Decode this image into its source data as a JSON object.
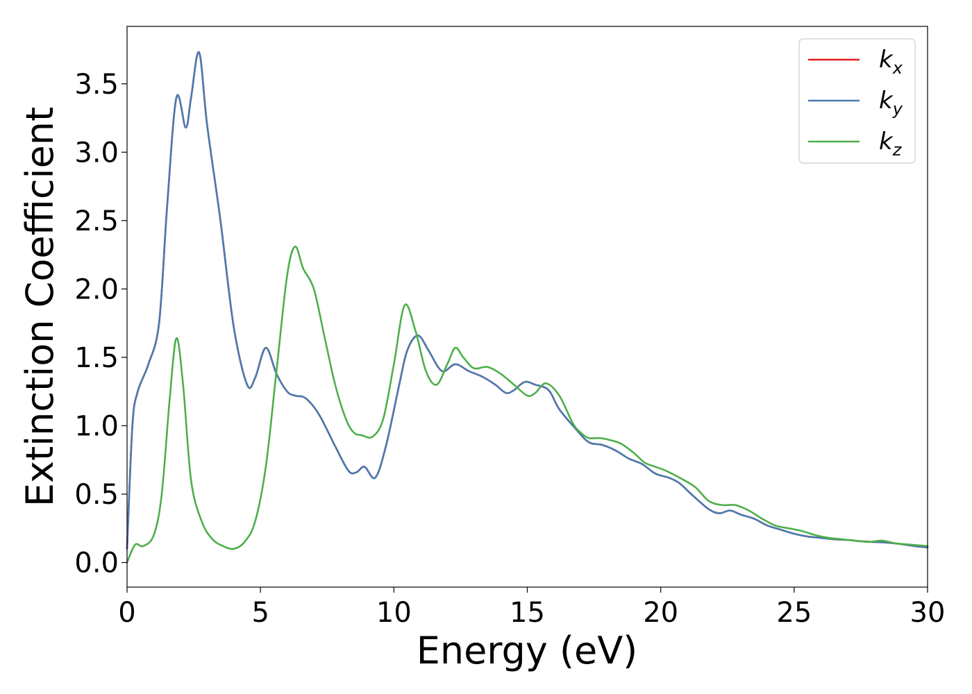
{
  "chart_data": {
    "type": "line",
    "xlabel": "Energy (eV)",
    "ylabel": "Extinction Coefficient",
    "xlim": [
      0,
      30
    ],
    "ylim": [
      -0.18,
      3.92
    ],
    "xticks": [
      0,
      5,
      10,
      15,
      20,
      25,
      30
    ],
    "xtick_labels": [
      "0",
      "5",
      "10",
      "15",
      "20",
      "25",
      "30"
    ],
    "yticks": [
      0.0,
      0.5,
      1.0,
      1.5,
      2.0,
      2.5,
      3.0,
      3.5
    ],
    "ytick_labels": [
      "0.0",
      "0.5",
      "1.0",
      "1.5",
      "2.0",
      "2.5",
      "3.0",
      "3.5"
    ],
    "grid": false,
    "legend": {
      "position": "top-right"
    },
    "series": [
      {
        "name": "k_x",
        "label_base": "k",
        "label_sub": "x",
        "color": "#e41a1c",
        "points": [
          [
            0,
            0.1
          ],
          [
            0.2,
            1.0
          ],
          [
            0.4,
            1.25
          ],
          [
            0.8,
            1.45
          ],
          [
            1.2,
            1.75
          ],
          [
            1.5,
            2.6
          ],
          [
            1.85,
            3.4
          ],
          [
            2.2,
            3.18
          ],
          [
            2.4,
            3.4
          ],
          [
            2.7,
            3.73
          ],
          [
            3.0,
            3.2
          ],
          [
            3.5,
            2.5
          ],
          [
            4.0,
            1.72
          ],
          [
            4.5,
            1.3
          ],
          [
            4.8,
            1.35
          ],
          [
            5.2,
            1.57
          ],
          [
            5.6,
            1.38
          ],
          [
            6.0,
            1.25
          ],
          [
            6.3,
            1.22
          ],
          [
            6.7,
            1.2
          ],
          [
            7.2,
            1.08
          ],
          [
            7.8,
            0.85
          ],
          [
            8.3,
            0.67
          ],
          [
            8.6,
            0.66
          ],
          [
            8.9,
            0.7
          ],
          [
            9.3,
            0.62
          ],
          [
            9.7,
            0.85
          ],
          [
            10.2,
            1.3
          ],
          [
            10.5,
            1.55
          ],
          [
            10.9,
            1.66
          ],
          [
            11.3,
            1.55
          ],
          [
            11.8,
            1.4
          ],
          [
            12.3,
            1.45
          ],
          [
            12.8,
            1.4
          ],
          [
            13.3,
            1.36
          ],
          [
            13.8,
            1.3
          ],
          [
            14.2,
            1.24
          ],
          [
            14.5,
            1.26
          ],
          [
            14.9,
            1.32
          ],
          [
            15.3,
            1.3
          ],
          [
            15.8,
            1.26
          ],
          [
            16.2,
            1.12
          ],
          [
            16.8,
            0.98
          ],
          [
            17.3,
            0.88
          ],
          [
            17.8,
            0.86
          ],
          [
            18.3,
            0.82
          ],
          [
            18.8,
            0.76
          ],
          [
            19.3,
            0.72
          ],
          [
            19.8,
            0.65
          ],
          [
            20.3,
            0.62
          ],
          [
            20.7,
            0.58
          ],
          [
            21.2,
            0.49
          ],
          [
            21.8,
            0.39
          ],
          [
            22.2,
            0.36
          ],
          [
            22.6,
            0.38
          ],
          [
            23.0,
            0.35
          ],
          [
            23.5,
            0.32
          ],
          [
            24.0,
            0.27
          ],
          [
            24.5,
            0.24
          ],
          [
            25.0,
            0.21
          ],
          [
            25.5,
            0.19
          ],
          [
            26.0,
            0.18
          ],
          [
            26.5,
            0.17
          ],
          [
            27.0,
            0.165
          ],
          [
            27.5,
            0.155
          ],
          [
            28.0,
            0.15
          ],
          [
            28.5,
            0.145
          ],
          [
            29.0,
            0.135
          ],
          [
            29.5,
            0.12
          ],
          [
            30.0,
            0.11
          ]
        ]
      },
      {
        "name": "k_y",
        "label_base": "k",
        "label_sub": "y",
        "color": "#4a7bb0",
        "points": [
          [
            0,
            0.1
          ],
          [
            0.2,
            1.0
          ],
          [
            0.4,
            1.25
          ],
          [
            0.8,
            1.45
          ],
          [
            1.2,
            1.75
          ],
          [
            1.5,
            2.6
          ],
          [
            1.85,
            3.4
          ],
          [
            2.2,
            3.18
          ],
          [
            2.4,
            3.4
          ],
          [
            2.7,
            3.73
          ],
          [
            3.0,
            3.2
          ],
          [
            3.5,
            2.5
          ],
          [
            4.0,
            1.72
          ],
          [
            4.5,
            1.3
          ],
          [
            4.8,
            1.35
          ],
          [
            5.2,
            1.57
          ],
          [
            5.6,
            1.38
          ],
          [
            6.0,
            1.25
          ],
          [
            6.3,
            1.22
          ],
          [
            6.7,
            1.2
          ],
          [
            7.2,
            1.08
          ],
          [
            7.8,
            0.85
          ],
          [
            8.3,
            0.67
          ],
          [
            8.6,
            0.66
          ],
          [
            8.9,
            0.7
          ],
          [
            9.3,
            0.62
          ],
          [
            9.7,
            0.85
          ],
          [
            10.2,
            1.3
          ],
          [
            10.5,
            1.55
          ],
          [
            10.9,
            1.66
          ],
          [
            11.3,
            1.55
          ],
          [
            11.8,
            1.4
          ],
          [
            12.3,
            1.45
          ],
          [
            12.8,
            1.4
          ],
          [
            13.3,
            1.36
          ],
          [
            13.8,
            1.3
          ],
          [
            14.2,
            1.24
          ],
          [
            14.5,
            1.26
          ],
          [
            14.9,
            1.32
          ],
          [
            15.3,
            1.3
          ],
          [
            15.8,
            1.26
          ],
          [
            16.2,
            1.12
          ],
          [
            16.8,
            0.98
          ],
          [
            17.3,
            0.88
          ],
          [
            17.8,
            0.86
          ],
          [
            18.3,
            0.82
          ],
          [
            18.8,
            0.76
          ],
          [
            19.3,
            0.72
          ],
          [
            19.8,
            0.65
          ],
          [
            20.3,
            0.62
          ],
          [
            20.7,
            0.58
          ],
          [
            21.2,
            0.49
          ],
          [
            21.8,
            0.39
          ],
          [
            22.2,
            0.36
          ],
          [
            22.6,
            0.38
          ],
          [
            23.0,
            0.35
          ],
          [
            23.5,
            0.32
          ],
          [
            24.0,
            0.27
          ],
          [
            24.5,
            0.24
          ],
          [
            25.0,
            0.21
          ],
          [
            25.5,
            0.19
          ],
          [
            26.0,
            0.18
          ],
          [
            26.5,
            0.17
          ],
          [
            27.0,
            0.165
          ],
          [
            27.5,
            0.155
          ],
          [
            28.0,
            0.15
          ],
          [
            28.5,
            0.145
          ],
          [
            29.0,
            0.135
          ],
          [
            29.5,
            0.12
          ],
          [
            30.0,
            0.11
          ]
        ]
      },
      {
        "name": "k_z",
        "label_base": "k",
        "label_sub": "z",
        "color": "#4daf4a",
        "points": [
          [
            0,
            0.0
          ],
          [
            0.3,
            0.13
          ],
          [
            0.6,
            0.12
          ],
          [
            1.0,
            0.2
          ],
          [
            1.3,
            0.5
          ],
          [
            1.6,
            1.2
          ],
          [
            1.85,
            1.64
          ],
          [
            2.1,
            1.3
          ],
          [
            2.4,
            0.6
          ],
          [
            2.8,
            0.3
          ],
          [
            3.2,
            0.17
          ],
          [
            3.6,
            0.12
          ],
          [
            4.0,
            0.1
          ],
          [
            4.4,
            0.15
          ],
          [
            4.8,
            0.3
          ],
          [
            5.2,
            0.7
          ],
          [
            5.6,
            1.4
          ],
          [
            6.0,
            2.1
          ],
          [
            6.3,
            2.31
          ],
          [
            6.6,
            2.15
          ],
          [
            7.0,
            2.0
          ],
          [
            7.4,
            1.65
          ],
          [
            7.8,
            1.3
          ],
          [
            8.2,
            1.05
          ],
          [
            8.5,
            0.95
          ],
          [
            8.8,
            0.93
          ],
          [
            9.2,
            0.92
          ],
          [
            9.6,
            1.05
          ],
          [
            10.0,
            1.45
          ],
          [
            10.4,
            1.88
          ],
          [
            10.8,
            1.7
          ],
          [
            11.2,
            1.4
          ],
          [
            11.6,
            1.3
          ],
          [
            12.0,
            1.45
          ],
          [
            12.3,
            1.57
          ],
          [
            12.6,
            1.5
          ],
          [
            13.0,
            1.42
          ],
          [
            13.5,
            1.43
          ],
          [
            14.0,
            1.38
          ],
          [
            14.5,
            1.3
          ],
          [
            15.0,
            1.22
          ],
          [
            15.3,
            1.24
          ],
          [
            15.7,
            1.31
          ],
          [
            16.2,
            1.22
          ],
          [
            16.7,
            1.02
          ],
          [
            17.0,
            0.95
          ],
          [
            17.3,
            0.91
          ],
          [
            17.7,
            0.91
          ],
          [
            18.0,
            0.9
          ],
          [
            18.5,
            0.87
          ],
          [
            19.0,
            0.8
          ],
          [
            19.4,
            0.73
          ],
          [
            19.8,
            0.7
          ],
          [
            20.2,
            0.67
          ],
          [
            20.8,
            0.61
          ],
          [
            21.3,
            0.55
          ],
          [
            21.8,
            0.45
          ],
          [
            22.3,
            0.42
          ],
          [
            22.8,
            0.42
          ],
          [
            23.3,
            0.38
          ],
          [
            23.8,
            0.32
          ],
          [
            24.3,
            0.27
          ],
          [
            24.8,
            0.25
          ],
          [
            25.3,
            0.23
          ],
          [
            25.8,
            0.2
          ],
          [
            26.3,
            0.18
          ],
          [
            26.8,
            0.17
          ],
          [
            27.3,
            0.16
          ],
          [
            27.8,
            0.15
          ],
          [
            28.3,
            0.16
          ],
          [
            28.8,
            0.14
          ],
          [
            29.4,
            0.13
          ],
          [
            30.0,
            0.12
          ]
        ]
      }
    ]
  }
}
